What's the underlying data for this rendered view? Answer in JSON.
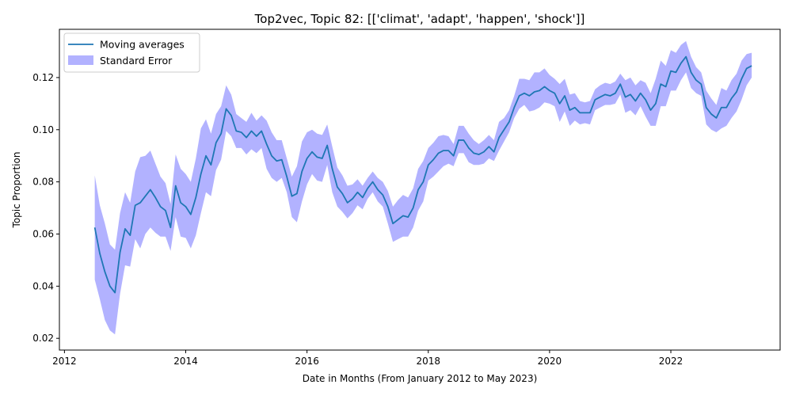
{
  "chart_data": {
    "type": "line",
    "title": "Top2vec, Topic 82: [['climat', 'adapt', 'happen', 'shock']]",
    "xlabel": "Date in Months (From January 2012 to May 2023)",
    "ylabel": "Topic Proportion",
    "xlim": [
      "2011-12-01",
      "2023-10-20"
    ],
    "ylim": [
      0.0155,
      0.1385
    ],
    "x_ticks": [
      "2012",
      "2014",
      "2016",
      "2018",
      "2020",
      "2022"
    ],
    "y_ticks": [
      "0.02",
      "0.04",
      "0.06",
      "0.08",
      "0.10",
      "0.12"
    ],
    "grid": false,
    "legend_position": "top-left",
    "colors": {
      "line": "#1f77b4",
      "band": "#0000ff"
    },
    "series": [
      {
        "name": "Moving averages",
        "x": [
          "2012-07",
          "2012-08",
          "2012-09",
          "2012-10",
          "2012-11",
          "2012-12",
          "2013-01",
          "2013-02",
          "2013-03",
          "2013-04",
          "2013-05",
          "2013-06",
          "2013-07",
          "2013-08",
          "2013-09",
          "2013-10",
          "2013-11",
          "2013-12",
          "2014-01",
          "2014-02",
          "2014-03",
          "2014-04",
          "2014-05",
          "2014-06",
          "2014-07",
          "2014-08",
          "2014-09",
          "2014-10",
          "2014-11",
          "2014-12",
          "2015-01",
          "2015-02",
          "2015-03",
          "2015-04",
          "2015-05",
          "2015-06",
          "2015-07",
          "2015-08",
          "2015-09",
          "2015-10",
          "2015-11",
          "2015-12",
          "2016-01",
          "2016-02",
          "2016-03",
          "2016-04",
          "2016-05",
          "2016-06",
          "2016-07",
          "2016-08",
          "2016-09",
          "2016-10",
          "2016-11",
          "2016-12",
          "2017-01",
          "2017-02",
          "2017-03",
          "2017-04",
          "2017-05",
          "2017-06",
          "2017-07",
          "2017-08",
          "2017-09",
          "2017-10",
          "2017-11",
          "2017-12",
          "2018-01",
          "2018-02",
          "2018-03",
          "2018-04",
          "2018-05",
          "2018-06",
          "2018-07",
          "2018-08",
          "2018-09",
          "2018-10",
          "2018-11",
          "2018-12",
          "2019-01",
          "2019-02",
          "2019-03",
          "2019-04",
          "2019-05",
          "2019-06",
          "2019-07",
          "2019-08",
          "2019-09",
          "2019-10",
          "2019-11",
          "2019-12",
          "2020-01",
          "2020-02",
          "2020-03",
          "2020-04",
          "2020-05",
          "2020-06",
          "2020-07",
          "2020-08",
          "2020-09",
          "2020-10",
          "2020-11",
          "2020-12",
          "2021-01",
          "2021-02",
          "2021-03",
          "2021-04",
          "2021-05",
          "2021-06",
          "2021-07",
          "2021-08",
          "2021-09",
          "2021-10",
          "2021-11",
          "2021-12",
          "2022-01",
          "2022-02",
          "2022-03",
          "2022-04",
          "2022-05",
          "2022-06",
          "2022-07",
          "2022-08",
          "2022-09",
          "2022-10",
          "2022-11",
          "2022-12",
          "2023-01",
          "2023-02",
          "2023-03",
          "2023-04",
          "2023-05"
        ],
        "y": [
          0.0625,
          0.0525,
          0.0455,
          0.04,
          0.0375,
          0.053,
          0.062,
          0.0595,
          0.071,
          0.072,
          0.0745,
          0.077,
          0.074,
          0.0705,
          0.069,
          0.0625,
          0.0785,
          0.072,
          0.0705,
          0.0675,
          0.074,
          0.083,
          0.09,
          0.0865,
          0.095,
          0.0985,
          0.108,
          0.1055,
          0.0995,
          0.099,
          0.097,
          0.0995,
          0.0975,
          0.0995,
          0.0945,
          0.09,
          0.088,
          0.0885,
          0.082,
          0.0745,
          0.0755,
          0.084,
          0.089,
          0.0915,
          0.0895,
          0.089,
          0.094,
          0.085,
          0.078,
          0.0755,
          0.072,
          0.0735,
          0.076,
          0.074,
          0.0775,
          0.08,
          0.077,
          0.075,
          0.0705,
          0.064,
          0.0655,
          0.067,
          0.0665,
          0.07,
          0.077,
          0.08,
          0.0865,
          0.0885,
          0.091,
          0.092,
          0.092,
          0.09,
          0.096,
          0.096,
          0.093,
          0.091,
          0.0905,
          0.0915,
          0.0935,
          0.0915,
          0.097,
          0.1,
          0.103,
          0.1085,
          0.113,
          0.114,
          0.113,
          0.1145,
          0.115,
          0.1165,
          0.115,
          0.114,
          0.11,
          0.113,
          0.1075,
          0.1085,
          0.1065,
          0.1065,
          0.1065,
          0.1115,
          0.1125,
          0.1135,
          0.113,
          0.114,
          0.1175,
          0.1125,
          0.1135,
          0.111,
          0.114,
          0.1115,
          0.1075,
          0.11,
          0.1175,
          0.1165,
          0.1225,
          0.122,
          0.1255,
          0.128,
          0.122,
          0.119,
          0.1175,
          0.1085,
          0.106,
          0.1045,
          0.1085,
          0.1085,
          0.112,
          0.1145,
          0.1195,
          0.1235,
          0.1245
        ]
      },
      {
        "name": "Standard Error",
        "lower": [
          0.0425,
          0.035,
          0.027,
          0.023,
          0.0215,
          0.037,
          0.048,
          0.0475,
          0.058,
          0.0545,
          0.06,
          0.0625,
          0.0605,
          0.059,
          0.059,
          0.0535,
          0.0665,
          0.059,
          0.0585,
          0.0545,
          0.0595,
          0.068,
          0.076,
          0.0745,
          0.0845,
          0.0885,
          0.0995,
          0.0975,
          0.093,
          0.093,
          0.0905,
          0.0925,
          0.091,
          0.093,
          0.085,
          0.0815,
          0.08,
          0.0815,
          0.076,
          0.0665,
          0.0645,
          0.0725,
          0.079,
          0.083,
          0.0805,
          0.08,
          0.0865,
          0.076,
          0.0705,
          0.0685,
          0.066,
          0.068,
          0.071,
          0.0695,
          0.0735,
          0.076,
          0.0725,
          0.0705,
          0.064,
          0.057,
          0.058,
          0.059,
          0.059,
          0.0625,
          0.069,
          0.0725,
          0.0805,
          0.082,
          0.084,
          0.086,
          0.087,
          0.086,
          0.091,
          0.091,
          0.0875,
          0.0865,
          0.0865,
          0.087,
          0.089,
          0.088,
          0.092,
          0.0955,
          0.099,
          0.1045,
          0.108,
          0.1095,
          0.107,
          0.1075,
          0.1085,
          0.1105,
          0.11,
          0.109,
          0.103,
          0.107,
          0.1015,
          0.1035,
          0.102,
          0.1025,
          0.102,
          0.1075,
          0.1085,
          0.1095,
          0.1095,
          0.11,
          0.1135,
          0.1065,
          0.1075,
          0.1055,
          0.109,
          0.105,
          0.1015,
          0.1015,
          0.109,
          0.109,
          0.115,
          0.115,
          0.119,
          0.122,
          0.116,
          0.114,
          0.113,
          0.102,
          0.1,
          0.099,
          0.1005,
          0.1015,
          0.1045,
          0.107,
          0.1115,
          0.117,
          0.12
        ],
        "upper": [
          0.0825,
          0.071,
          0.064,
          0.056,
          0.054,
          0.068,
          0.076,
          0.072,
          0.084,
          0.0895,
          0.09,
          0.092,
          0.087,
          0.082,
          0.0795,
          0.0715,
          0.0905,
          0.085,
          0.083,
          0.08,
          0.089,
          0.1005,
          0.104,
          0.0985,
          0.106,
          0.109,
          0.117,
          0.1135,
          0.106,
          0.1045,
          0.103,
          0.1065,
          0.1035,
          0.1055,
          0.1035,
          0.099,
          0.096,
          0.096,
          0.089,
          0.082,
          0.086,
          0.0955,
          0.099,
          0.1,
          0.0985,
          0.098,
          0.102,
          0.0935,
          0.0855,
          0.0825,
          0.0785,
          0.079,
          0.081,
          0.0785,
          0.0815,
          0.084,
          0.0815,
          0.08,
          0.0765,
          0.0705,
          0.073,
          0.075,
          0.074,
          0.0775,
          0.085,
          0.088,
          0.093,
          0.095,
          0.0975,
          0.098,
          0.0975,
          0.0945,
          0.1015,
          0.1015,
          0.0985,
          0.096,
          0.0945,
          0.096,
          0.098,
          0.096,
          0.103,
          0.1045,
          0.1075,
          0.113,
          0.1195,
          0.1195,
          0.119,
          0.122,
          0.122,
          0.1235,
          0.121,
          0.1195,
          0.1175,
          0.1195,
          0.1135,
          0.114,
          0.111,
          0.1105,
          0.111,
          0.1155,
          0.117,
          0.118,
          0.1175,
          0.1185,
          0.1215,
          0.119,
          0.12,
          0.117,
          0.119,
          0.118,
          0.114,
          0.1195,
          0.1265,
          0.1245,
          0.1305,
          0.1295,
          0.1325,
          0.134,
          0.128,
          0.124,
          0.122,
          0.115,
          0.112,
          0.1095,
          0.116,
          0.115,
          0.119,
          0.1215,
          0.1265,
          0.129,
          0.1295
        ]
      }
    ]
  }
}
